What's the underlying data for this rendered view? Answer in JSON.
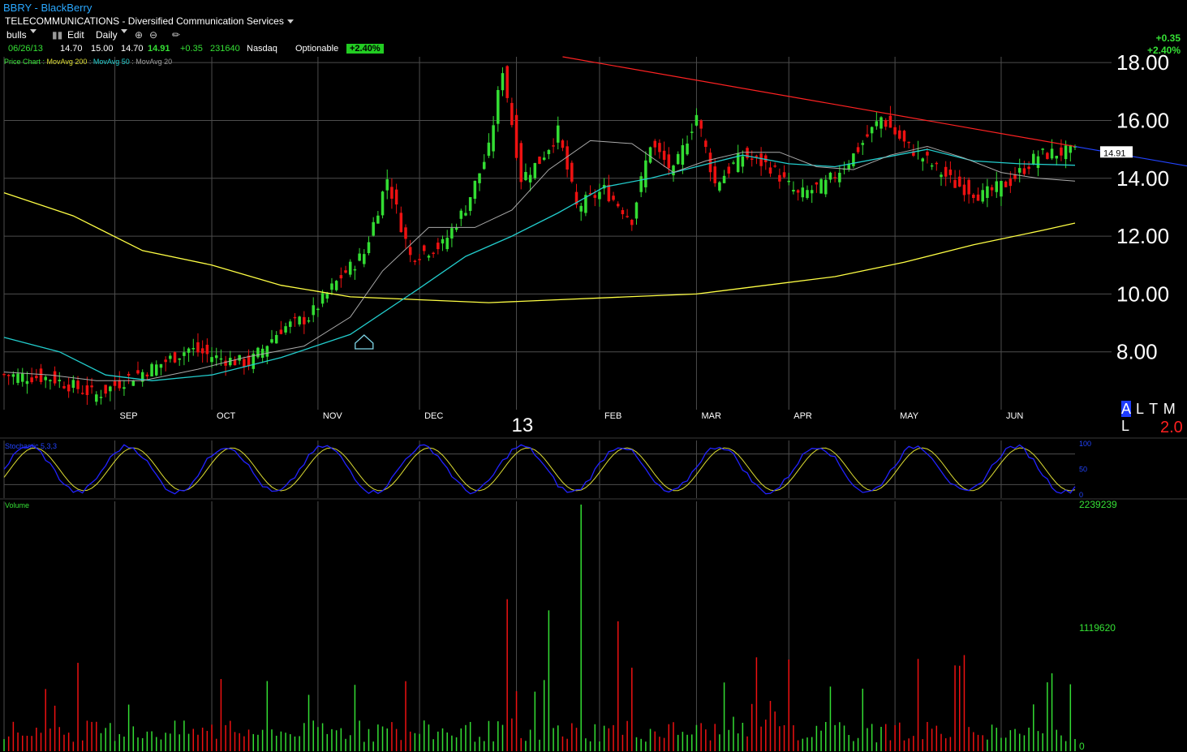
{
  "header": {
    "title": "BBRY - BlackBerry",
    "sector": "TELECOMMUNICATIONS - Diversified Communication Services",
    "toolbar": {
      "list": "bulls",
      "edit": "Edit",
      "period": "Daily"
    },
    "quote": {
      "date": "06/26/13",
      "open": "14.70",
      "high": "15.00",
      "low": "14.70",
      "close": "14.91",
      "change": "+0.35",
      "volume": "231640",
      "exchange": "Nasdaq",
      "optionable": "Optionable",
      "pct": "+2.40%"
    },
    "change_box": {
      "abs": "+0.35",
      "pct": "+2.40%"
    },
    "alt": {
      "letters": [
        "A",
        "L",
        "T",
        "M",
        "L"
      ],
      "number": "2.0"
    }
  },
  "colors": {
    "up": "#33dd33",
    "down": "#ee1111",
    "ma200": "#ffff44",
    "ma50": "#22cccc",
    "ma20": "#aaaaaa",
    "trend": "#ff2222",
    "stoch_k": "#2222ff",
    "stoch_d": "#dddd33",
    "grid": "#4d4d4d"
  },
  "chart_data": [
    {
      "type": "candlestick",
      "title": "Price Chart",
      "legend": [
        "Price Chart",
        "MovAvg 200",
        "MovAvg 50",
        "MovAvg 20"
      ],
      "ylim": [
        6,
        18.2
      ],
      "y_ticks": [
        "8.00",
        "10.00",
        "12.00",
        "14.00",
        "16.00",
        "18.00"
      ],
      "x_labels": [
        "SEP",
        "OCT",
        "NOV",
        "DEC",
        "13",
        "FEB",
        "MAR",
        "APR",
        "MAY",
        "JUN"
      ],
      "last_price_label": "14.91",
      "price_path": [
        [
          0,
          7.2
        ],
        [
          10,
          7.1
        ],
        [
          20,
          6.5
        ],
        [
          27,
          7.1
        ],
        [
          33,
          7.5
        ],
        [
          40,
          8.1
        ],
        [
          46,
          7.8
        ],
        [
          53,
          7.6
        ],
        [
          60,
          8.8
        ],
        [
          66,
          9.2
        ],
        [
          73,
          10.6
        ],
        [
          78,
          11.4
        ],
        [
          83,
          14
        ],
        [
          88,
          11.3
        ],
        [
          95,
          11.7
        ],
        [
          100,
          13
        ],
        [
          105,
          15
        ],
        [
          108,
          17.8
        ],
        [
          112,
          14
        ],
        [
          116,
          14.6
        ],
        [
          120,
          15.6
        ],
        [
          124,
          13
        ],
        [
          130,
          13.6
        ],
        [
          136,
          12.6
        ],
        [
          140,
          15.2
        ],
        [
          145,
          14.2
        ],
        [
          150,
          16.2
        ],
        [
          154,
          13.8
        ],
        [
          160,
          14.8
        ],
        [
          166,
          14.4
        ],
        [
          172,
          13.4
        ],
        [
          178,
          13.8
        ],
        [
          184,
          14.8
        ],
        [
          190,
          16.1
        ],
        [
          195,
          15.2
        ],
        [
          200,
          14.6
        ],
        [
          206,
          13.8
        ],
        [
          212,
          13.4
        ],
        [
          218,
          13.9
        ],
        [
          224,
          14.8
        ],
        [
          229,
          14.9
        ],
        [
          232,
          14.91
        ]
      ],
      "ma200": [
        [
          0,
          13.5
        ],
        [
          15,
          12.7
        ],
        [
          30,
          11.5
        ],
        [
          45,
          11
        ],
        [
          60,
          10.3
        ],
        [
          75,
          9.9
        ],
        [
          90,
          9.8
        ],
        [
          105,
          9.7
        ],
        [
          120,
          9.8
        ],
        [
          135,
          9.9
        ],
        [
          150,
          10
        ],
        [
          165,
          10.3
        ],
        [
          180,
          10.6
        ],
        [
          195,
          11.1
        ],
        [
          210,
          11.7
        ],
        [
          225,
          12.2
        ],
        [
          232,
          12.45
        ]
      ],
      "ma50": [
        [
          0,
          8.5
        ],
        [
          12,
          8
        ],
        [
          22,
          7.2
        ],
        [
          32,
          7
        ],
        [
          45,
          7.2
        ],
        [
          60,
          7.8
        ],
        [
          75,
          8.6
        ],
        [
          90,
          10.2
        ],
        [
          100,
          11.3
        ],
        [
          110,
          12
        ],
        [
          120,
          12.8
        ],
        [
          130,
          13.7
        ],
        [
          140,
          14
        ],
        [
          150,
          14.4
        ],
        [
          160,
          14.8
        ],
        [
          170,
          14.5
        ],
        [
          180,
          14.4
        ],
        [
          190,
          14.7
        ],
        [
          200,
          15
        ],
        [
          210,
          14.6
        ],
        [
          220,
          14.5
        ],
        [
          232,
          14.45
        ]
      ],
      "ma20": [
        [
          0,
          7.3
        ],
        [
          10,
          7.2
        ],
        [
          20,
          7
        ],
        [
          30,
          7
        ],
        [
          42,
          7.4
        ],
        [
          52,
          7.8
        ],
        [
          65,
          8.2
        ],
        [
          75,
          9.2
        ],
        [
          82,
          10.8
        ],
        [
          92,
          12.3
        ],
        [
          102,
          12.3
        ],
        [
          110,
          12.9
        ],
        [
          118,
          14.3
        ],
        [
          127,
          15.3
        ],
        [
          136,
          15.2
        ],
        [
          145,
          14.2
        ],
        [
          152,
          14.6
        ],
        [
          160,
          14.9
        ],
        [
          168,
          14.9
        ],
        [
          176,
          14.4
        ],
        [
          184,
          14.3
        ],
        [
          192,
          14.8
        ],
        [
          200,
          15.1
        ],
        [
          208,
          14.7
        ],
        [
          216,
          14.2
        ],
        [
          224,
          14
        ],
        [
          232,
          13.9
        ]
      ],
      "trendline": [
        [
          121,
          18.2
        ],
        [
          232,
          15.1
        ],
        [
          256,
          14.65
        ]
      ],
      "annotation": "pivot marker near day 78 at 8.5"
    },
    {
      "type": "line",
      "title": "Stochastic 5,3,3",
      "ylim": [
        0,
        100
      ],
      "y_ticks": [
        "0",
        "50",
        "100"
      ],
      "bands": [
        20,
        80
      ]
    },
    {
      "type": "bar",
      "title": "Volume",
      "ylim": [
        0,
        2239239
      ],
      "y_ticks": [
        "0",
        "1119620",
        "2239239"
      ]
    }
  ]
}
